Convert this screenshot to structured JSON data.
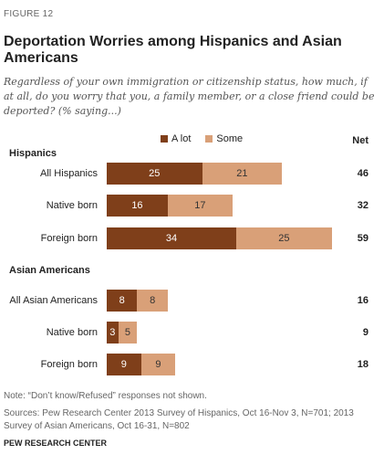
{
  "figure_label": "FIGURE 12",
  "title": "Deportation Worries among Hispanics and Asian Americans",
  "subtitle": "Regardless of your own immigration or citizenship status, how much, if at all, do you worry that you, a family member, or a close friend could be deported? (% saying...)",
  "net_header": "Net",
  "colors": {
    "a_lot": "#7f3f1a",
    "some": "#d9a078"
  },
  "chart_data": {
    "type": "bar",
    "stacked": true,
    "orientation": "horizontal",
    "legend": [
      "A lot",
      "Some"
    ],
    "groups": [
      {
        "name": "Hispanics",
        "rows": [
          {
            "label": "All Hispanics",
            "a_lot": 25,
            "some": 21,
            "net": 46
          },
          {
            "label": "Native born",
            "a_lot": 16,
            "some": 17,
            "net": 32
          },
          {
            "label": "Foreign born",
            "a_lot": 34,
            "some": 25,
            "net": 59
          }
        ]
      },
      {
        "name": "Asian Americans",
        "rows": [
          {
            "label": "All Asian Americans",
            "a_lot": 8,
            "some": 8,
            "net": 16
          },
          {
            "label": "Native born",
            "a_lot": 3,
            "some": 5,
            "net": 9
          },
          {
            "label": "Foreign born",
            "a_lot": 9,
            "some": 9,
            "net": 18
          }
        ]
      }
    ]
  },
  "note": "Note: “Don’t know/Refused” responses not shown.",
  "sources": "Sources: Pew Research Center 2013 Survey of Hispanics, Oct 16-Nov 3, N=701; 2013 Survey of Asian Americans, Oct 16-31, N=802",
  "org": "PEW RESEARCH CENTER"
}
